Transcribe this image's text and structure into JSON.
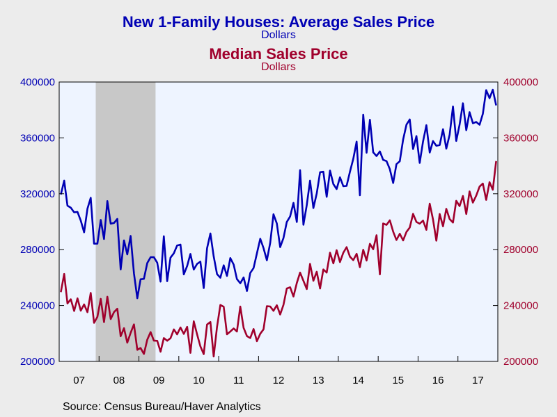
{
  "chart_data": {
    "type": "line",
    "title": "New 1-Family Houses: Average Sales Price",
    "title_units": "Dollars",
    "subtitle": "Median Sales Price",
    "subtitle_units": "Dollars",
    "source": "Source:  Census Bureau/Haver Analytics",
    "x_start": "2007-01",
    "x_end": "2017-12",
    "x_ticks": [
      "07",
      "08",
      "09",
      "10",
      "11",
      "12",
      "13",
      "14",
      "15",
      "16",
      "17"
    ],
    "ylim": [
      200000,
      400000
    ],
    "y_ticks": [
      "200000",
      "240000",
      "280000",
      "320000",
      "360000",
      "400000"
    ],
    "recession": {
      "start": "2007-12",
      "end": "2009-06"
    },
    "colors": {
      "average": "#0000b4",
      "median": "#a0002c",
      "plot_bg": "#eef4ff",
      "recession": "#c8c8c8",
      "page_bg": "#ececec"
    },
    "series": [
      {
        "key": "average",
        "axis": "left",
        "values": [
          319500,
          329400,
          311500,
          310000,
          306700,
          307000,
          300800,
          292400,
          309300,
          317100,
          284300,
          284300,
          301300,
          287600,
          314800,
          298600,
          299100,
          302000,
          265800,
          286600,
          276600,
          289800,
          263000,
          245200,
          258800,
          259100,
          270400,
          274600,
          274600,
          270700,
          257100,
          289600,
          257400,
          274300,
          277400,
          283000,
          283600,
          262300,
          268300,
          276900,
          265700,
          269800,
          271400,
          252500,
          281000,
          291600,
          275200,
          262500,
          259900,
          268800,
          261200,
          274000,
          269300,
          258900,
          255900,
          260100,
          250400,
          263300,
          266800,
          277300,
          287800,
          281100,
          272400,
          284900,
          305300,
          298700,
          281800,
          288400,
          299800,
          303800,
          313500,
          299800,
          336900,
          297800,
          311900,
          329400,
          309800,
          320200,
          335400,
          335700,
          317800,
          336600,
          326900,
          323400,
          331800,
          325400,
          325600,
          335700,
          345000,
          357300,
          318900,
          376600,
          349400,
          373000,
          349700,
          347000,
          350300,
          344300,
          343400,
          337600,
          327700,
          341200,
          343300,
          358800,
          369500,
          373200,
          352000,
          361300,
          342100,
          357400,
          369100,
          349500,
          357700,
          354400,
          354900,
          366200,
          352300,
          362300,
          382500,
          357800,
          369500,
          384800,
          365500,
          378400,
          370500,
          371400,
          369400,
          377200,
          394200,
          388400,
          394500,
          383300
        ]
      },
      {
        "key": "median",
        "axis": "right",
        "values": [
          249600,
          262600,
          241500,
          244500,
          236100,
          245100,
          236300,
          240800,
          235200,
          249000,
          227600,
          231900,
          244800,
          228100,
          246300,
          230300,
          235300,
          237700,
          218000,
          223800,
          213400,
          220400,
          226500,
          208300,
          209600,
          205300,
          215500,
          221000,
          214900,
          214800,
          206900,
          216700,
          214800,
          216600,
          222900,
          219400,
          224300,
          219700,
          224800,
          206100,
          228700,
          219300,
          210800,
          205200,
          226400,
          228200,
          203500,
          224700,
          240400,
          239100,
          219400,
          221400,
          223600,
          221400,
          239300,
          224000,
          218100,
          216700,
          223200,
          214500,
          219800,
          223000,
          239500,
          239300,
          236200,
          240200,
          233600,
          240600,
          252200,
          253100,
          246400,
          256100,
          263600,
          257700,
          251800,
          269800,
          257700,
          264200,
          252200,
          265800,
          263600,
          277800,
          270200,
          279600,
          271100,
          277800,
          281800,
          275000,
          272500,
          277000,
          267400,
          279900,
          272200,
          284200,
          280300,
          290300,
          262300,
          298700,
          297700,
          301000,
          292900,
          286900,
          291400,
          286600,
          292700,
          295800,
          305600,
          299800,
          298600,
          300800,
          294200,
          312900,
          301700,
          286400,
          305500,
          296700,
          309200,
          301900,
          299400,
          315000,
          311200,
          318400,
          305500,
          321700,
          313700,
          318700,
          325100,
          327300,
          315600,
          328300,
          322900,
          343400
        ]
      }
    ]
  }
}
